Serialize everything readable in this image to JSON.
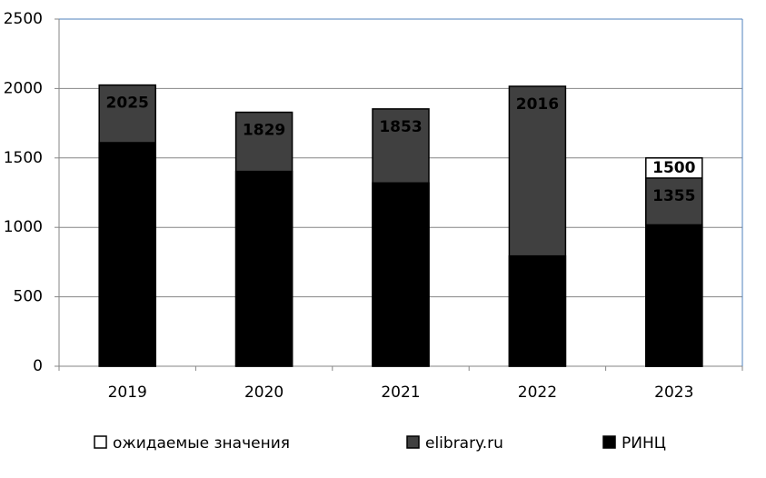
{
  "chart_data": {
    "type": "bar",
    "layout": "overlap",
    "categories": [
      "2019",
      "2020",
      "2021",
      "2022",
      "2023"
    ],
    "series": [
      {
        "name": "ожидаемые значения",
        "color": "#ffffff",
        "values": [
          null,
          null,
          null,
          null,
          1500
        ]
      },
      {
        "name": "elibrary.ru",
        "color": "#404040",
        "values": [
          2025,
          1829,
          1853,
          2016,
          1355
        ]
      },
      {
        "name": "РИНЦ",
        "color": "#000000",
        "values": [
          1610,
          1403,
          1320,
          794,
          1018
        ]
      }
    ],
    "ylim": [
      0,
      2500
    ],
    "yticks": [
      0,
      500,
      1000,
      1500,
      2000,
      2500
    ],
    "grid": true,
    "legend": "bottom"
  }
}
